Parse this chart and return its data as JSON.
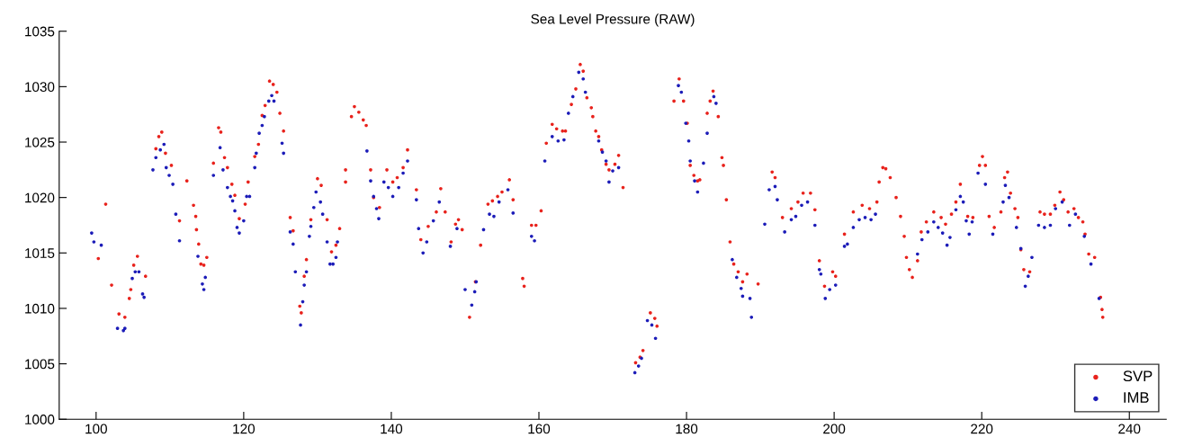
{
  "chart_data": {
    "type": "scatter",
    "title": "Sea Level Pressure (RAW)",
    "xlim": [
      95,
      245
    ],
    "xticks": [
      100,
      120,
      140,
      160,
      180,
      200,
      220,
      240
    ],
    "ylim": [
      1000,
      1035
    ],
    "yticks": [
      1000,
      1005,
      1010,
      1015,
      1020,
      1025,
      1030,
      1035
    ],
    "grid": false,
    "legend": "bottom right",
    "marker": "circle",
    "series": [
      {
        "name": "SVP",
        "color": "#e8221c",
        "x": [
          100.3,
          101.3,
          102.1,
          103.1,
          103.9,
          104.5,
          104.7,
          105.1,
          105.6,
          106.7,
          108.1,
          108.5,
          108.9,
          109.4,
          110.2,
          110.8,
          111.3,
          112.3,
          113.2,
          113.5,
          113.6,
          113.9,
          114.2,
          114.6,
          115.0,
          115.9,
          116.6,
          116.9,
          117.4,
          117.8,
          118.4,
          118.8,
          119.4,
          120.2,
          120.6,
          121.5,
          122.0,
          122.5,
          122.9,
          123.5,
          124.0,
          124.5,
          124.9,
          125.4,
          126.3,
          126.7,
          127.6,
          127.8,
          128.2,
          128.5,
          129.1,
          130.0,
          130.5,
          131.3,
          131.9,
          132.5,
          133.0,
          133.8,
          133.8,
          134.6,
          135.0,
          135.6,
          136.2,
          136.6,
          137.2,
          137.6,
          138.4,
          139.4,
          140.2,
          140.8,
          141.6,
          142.2,
          143.4,
          144.0,
          145.0,
          146.1,
          146.7,
          147.3,
          148.1,
          148.7,
          149.1,
          149.6,
          150.6,
          151.4,
          152.1,
          153.1,
          153.7,
          154.4,
          155.0,
          156.0,
          156.5,
          157.8,
          158.0,
          159.0,
          159.6,
          160.3,
          161.0,
          161.8,
          162.4,
          163.2,
          163.6,
          164.4,
          165.0,
          165.6,
          166.0,
          166.5,
          167.1,
          167.3,
          167.7,
          168.1,
          168.5,
          169.1,
          169.5,
          170.3,
          170.8,
          171.4,
          173.1,
          173.7,
          174.1,
          175.1,
          175.7,
          176.0,
          178.3,
          179.0,
          179.6,
          180.1,
          180.5,
          181.0,
          181.5,
          181.8,
          182.8,
          183.2,
          183.6,
          184.3,
          184.8,
          185.0,
          185.4,
          185.9,
          186.4,
          187.0,
          187.6,
          188.2,
          189.7,
          191.6,
          192.0,
          193.0,
          194.2,
          195.1,
          195.8,
          196.8,
          197.4,
          198.0,
          198.7,
          199.8,
          200.2,
          201.4,
          202.6,
          203.8,
          204.8,
          205.8,
          206.1,
          206.6,
          207.0,
          207.6,
          208.4,
          209.0,
          209.5,
          209.8,
          210.2,
          210.6,
          211.3,
          211.8,
          212.5,
          213.5,
          214.5,
          215.1,
          215.9,
          216.5,
          217.1,
          218.1,
          218.8,
          219.7,
          220.1,
          220.5,
          221.0,
          221.7,
          222.6,
          223.1,
          223.5,
          223.9,
          224.5,
          224.9,
          225.3,
          225.7,
          226.5,
          227.9,
          228.5,
          229.3,
          229.9,
          230.6,
          231.1,
          231.7,
          232.5,
          233.1,
          233.7,
          234.0,
          234.5,
          235.3,
          236.1,
          236.3,
          236.4
        ],
        "values": [
          1014.5,
          1019.4,
          1012.1,
          1009.5,
          1009.2,
          1010.9,
          1011.7,
          1013.9,
          1014.7,
          1012.9,
          1024.4,
          1025.5,
          1025.9,
          1024.0,
          1022.9,
          null,
          1017.9,
          1021.5,
          1019.3,
          1018.3,
          1017.1,
          1015.8,
          1014.0,
          1013.9,
          1014.6,
          1023.1,
          1026.3,
          1025.9,
          1023.6,
          1022.7,
          1021.2,
          1020.2,
          1018.1,
          1019.4,
          1021.4,
          1023.7,
          1024.8,
          1027.4,
          1028.3,
          1030.5,
          1030.2,
          1029.5,
          1027.6,
          1026.0,
          1018.2,
          1017.0,
          1010.2,
          1009.6,
          1012.9,
          1014.4,
          1018.0,
          1021.7,
          1021.1,
          1018.0,
          1015.1,
          1015.7,
          1017.2,
          1022.5,
          1021.4,
          1027.3,
          1028.2,
          1027.7,
          1027.0,
          1026.5,
          1022.5,
          1020.0,
          1019.1,
          1022.5,
          1021.4,
          1021.8,
          1022.7,
          1024.3,
          1020.7,
          1016.2,
          1017.4,
          1018.7,
          1020.8,
          1018.7,
          1016.0,
          1017.6,
          1018.0,
          1017.1,
          1009.2,
          1012.4,
          1015.7,
          1019.4,
          1019.7,
          1020.1,
          1020.5,
          1021.6,
          1019.8,
          1012.7,
          1012.0,
          1017.5,
          1017.5,
          1018.8,
          1024.9,
          1026.6,
          1026.2,
          1026.0,
          1026.0,
          1028.4,
          1029.8,
          1032.0,
          1031.4,
          1029.0,
          1028.1,
          1027.3,
          1026.0,
          1025.5,
          1024.3,
          1023.0,
          1022.5,
          1023.0,
          1023.8,
          1020.9,
          1005.1,
          1005.6,
          1006.2,
          1009.6,
          1009.1,
          1008.4,
          1028.7,
          1030.7,
          1028.7,
          1026.7,
          1022.9,
          1022.0,
          1021.5,
          1021.6,
          1027.6,
          1028.7,
          1029.6,
          1027.3,
          1023.6,
          1022.9,
          1019.8,
          1016.0,
          1014.0,
          1013.3,
          1012.4,
          1013.1,
          1012.2,
          1022.3,
          1021.8,
          1018.2,
          1019.0,
          1019.6,
          1020.4,
          1020.4,
          1018.9,
          1014.3,
          1012.0,
          1013.3,
          1012.9,
          1016.7,
          1018.7,
          1019.3,
          1019.0,
          1019.6,
          1021.4,
          1022.7,
          1022.6,
          1021.8,
          1020.0,
          1018.3,
          1016.5,
          1014.6,
          1013.5,
          1012.8,
          1014.3,
          1016.9,
          1017.8,
          1018.7,
          1018.2,
          1017.6,
          1018.5,
          1019.6,
          1021.2,
          1018.3,
          1018.2,
          1022.9,
          1023.7,
          1022.9,
          1018.3,
          1017.3,
          1018.7,
          1021.8,
          1022.3,
          1020.4,
          1019.0,
          1018.2,
          1015.3,
          1013.5,
          1013.3,
          1018.7,
          1018.5,
          1018.5,
          1019.3,
          1020.5,
          1019.8,
          1018.7,
          1019.0,
          1018.2,
          1017.8,
          1016.7,
          1014.9,
          1014.6,
          1011.0,
          1009.9,
          1009.2
        ]
      },
      {
        "name": "IMB",
        "color": "#1c1cb8",
        "x": [
          99.4,
          99.7,
          100.7,
          102.9,
          103.7,
          103.9,
          104.9,
          105.3,
          105.8,
          106.3,
          106.5,
          107.7,
          108.1,
          108.7,
          109.2,
          109.5,
          109.9,
          110.4,
          110.8,
          111.3,
          113.8,
          114.4,
          114.6,
          114.8,
          115.9,
          116.8,
          117.2,
          117.8,
          118.2,
          118.5,
          118.8,
          119.1,
          119.4,
          120.0,
          120.4,
          120.8,
          121.5,
          121.7,
          122.1,
          122.5,
          122.8,
          123.4,
          123.8,
          124.1,
          125.2,
          125.4,
          126.3,
          126.7,
          127.0,
          127.7,
          128.0,
          128.2,
          128.5,
          128.9,
          129.1,
          129.5,
          129.8,
          130.4,
          130.7,
          131.3,
          131.7,
          132.1,
          132.5,
          132.7,
          136.7,
          137.2,
          137.6,
          138.0,
          138.3,
          139.0,
          139.6,
          140.2,
          141.0,
          141.6,
          142.2,
          143.4,
          143.7,
          144.3,
          144.8,
          145.7,
          146.5,
          148.0,
          148.9,
          150.0,
          150.9,
          151.3,
          151.5,
          152.5,
          153.3,
          153.9,
          154.6,
          155.8,
          156.5,
          159.0,
          159.4,
          160.8,
          161.8,
          162.6,
          163.4,
          164.0,
          164.6,
          165.4,
          166.0,
          166.3,
          168.1,
          168.6,
          169.1,
          169.5,
          170.0,
          170.8,
          173.0,
          173.5,
          173.9,
          174.7,
          175.3,
          175.8,
          178.9,
          179.3,
          179.9,
          180.3,
          180.5,
          181.1,
          181.5,
          182.3,
          182.8,
          183.7,
          184.0,
          186.2,
          186.8,
          187.4,
          187.6,
          188.6,
          188.8,
          190.6,
          191.2,
          192.0,
          192.3,
          193.3,
          194.2,
          194.8,
          195.6,
          196.4,
          197.4,
          198.0,
          198.2,
          198.8,
          199.4,
          200.2,
          201.4,
          201.8,
          202.6,
          203.4,
          204.2,
          205.0,
          205.6,
          211.3,
          211.9,
          212.7,
          213.5,
          214.1,
          214.7,
          215.3,
          215.7,
          216.5,
          217.1,
          217.5,
          217.9,
          218.3,
          218.7,
          219.5,
          220.5,
          221.5,
          222.9,
          223.2,
          223.7,
          224.7,
          225.3,
          225.9,
          226.3,
          226.8,
          227.7,
          228.5,
          229.3,
          230.0,
          230.9,
          231.9,
          232.7,
          233.9,
          234.8,
          235.9
        ],
        "values": [
          1016.8,
          1016.0,
          1015.7,
          1008.2,
          1008.0,
          1008.2,
          1012.7,
          1013.3,
          1013.3,
          1011.3,
          1011.0,
          1022.5,
          1023.6,
          1024.3,
          1024.8,
          1022.7,
          1022.0,
          1021.2,
          1018.5,
          1016.1,
          1014.7,
          1012.2,
          1011.7,
          1012.8,
          1022.0,
          1024.5,
          1022.5,
          1020.9,
          1020.1,
          1019.7,
          1018.8,
          1017.3,
          1016.8,
          1017.9,
          1020.1,
          1020.1,
          1022.7,
          1024.0,
          1025.8,
          1026.5,
          1027.3,
          1028.7,
          1029.2,
          1028.7,
          1024.9,
          1024.0,
          1016.9,
          1015.8,
          1013.3,
          1008.5,
          1010.6,
          1012.1,
          1013.3,
          1016.5,
          1017.4,
          1019.1,
          1020.5,
          1019.6,
          1018.5,
          1016.0,
          1014.0,
          1014.0,
          1014.6,
          1016.0,
          1024.2,
          1021.5,
          1020.1,
          1019.0,
          1018.1,
          1021.4,
          1020.9,
          1020.1,
          1020.9,
          1022.2,
          1023.3,
          1019.8,
          1017.2,
          1015.0,
          1016.0,
          1017.9,
          1019.6,
          1015.6,
          1017.2,
          1011.7,
          1010.3,
          1011.5,
          1012.4,
          1017.1,
          1018.5,
          1018.3,
          1019.6,
          1020.7,
          1018.6,
          1016.5,
          1016.1,
          1023.3,
          1025.5,
          1025.1,
          1025.2,
          1027.6,
          1029.1,
          1031.3,
          1030.7,
          1029.5,
          1025.1,
          1024.1,
          1023.3,
          1021.4,
          1022.4,
          1022.7,
          1004.2,
          1004.8,
          1005.5,
          1008.9,
          1008.5,
          1007.3,
          1030.1,
          1029.5,
          1026.7,
          1025.1,
          1023.3,
          1021.5,
          1020.5,
          1023.1,
          1025.8,
          1029.1,
          1028.5,
          1014.4,
          1012.8,
          1011.8,
          1011.1,
          1010.9,
          1009.2,
          1017.6,
          1020.7,
          1021.0,
          1019.8,
          1016.9,
          1018.0,
          1018.3,
          1019.3,
          1019.6,
          1017.5,
          1013.5,
          1013.1,
          1010.9,
          1011.7,
          1012.1,
          1015.6,
          1015.8,
          1017.3,
          1018.0,
          1018.2,
          1018.0,
          1018.5,
          1014.9,
          1016.2,
          1016.9,
          1017.8,
          1017.3,
          1016.8,
          1015.7,
          1016.4,
          1018.9,
          1020.1,
          1019.6,
          1017.9,
          1016.7,
          1017.8,
          1022.2,
          1021.2,
          1016.7,
          1019.6,
          1021.1,
          1020.0,
          1017.3,
          1015.4,
          1012.0,
          1012.9,
          1014.6,
          1017.5,
          1017.3,
          1017.5,
          1019.0,
          1019.6,
          1017.5,
          1018.5,
          1016.5,
          1014.0,
          1010.9
        ]
      }
    ]
  }
}
